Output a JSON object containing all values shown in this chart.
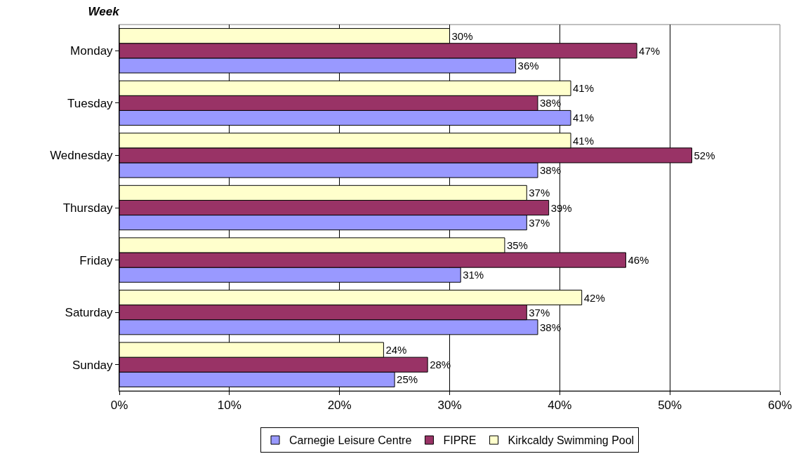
{
  "chart_data": {
    "type": "bar",
    "orientation": "horizontal",
    "title": "Week",
    "categories": [
      "Monday",
      "Tuesday",
      "Wednesday",
      "Thursday",
      "Friday",
      "Saturday",
      "Sunday"
    ],
    "series": [
      {
        "name": "Carnegie Leisure Centre",
        "color": "#9999ff",
        "values": [
          36,
          41,
          38,
          37,
          31,
          38,
          25
        ],
        "value_labels": [
          "36%",
          "41%",
          "38%",
          "37%",
          "31%",
          "38%",
          "25%"
        ]
      },
      {
        "name": "FIPRE",
        "color": "#993366",
        "values": [
          47,
          38,
          52,
          39,
          46,
          37,
          28
        ],
        "value_labels": [
          "47%",
          "38%",
          "52%",
          "39%",
          "46%",
          "37%",
          "28%"
        ]
      },
      {
        "name": "Kirkcaldy Swimming Pool",
        "color": "#ffffcc",
        "values": [
          30,
          41,
          41,
          37,
          35,
          42,
          24
        ],
        "value_labels": [
          "30%",
          "41%",
          "41%",
          "37%",
          "35%",
          "42%",
          "24%"
        ]
      }
    ],
    "xlim": [
      0,
      60
    ],
    "xticks": [
      {
        "value": 0,
        "label": "0%"
      },
      {
        "value": 10,
        "label": "10%"
      },
      {
        "value": 20,
        "label": "20%"
      },
      {
        "value": 30,
        "label": "30%"
      },
      {
        "value": 40,
        "label": "40%"
      },
      {
        "value": 50,
        "label": "50%"
      },
      {
        "value": 60,
        "label": "60%"
      }
    ],
    "grid": "x",
    "legend": "bottom"
  }
}
